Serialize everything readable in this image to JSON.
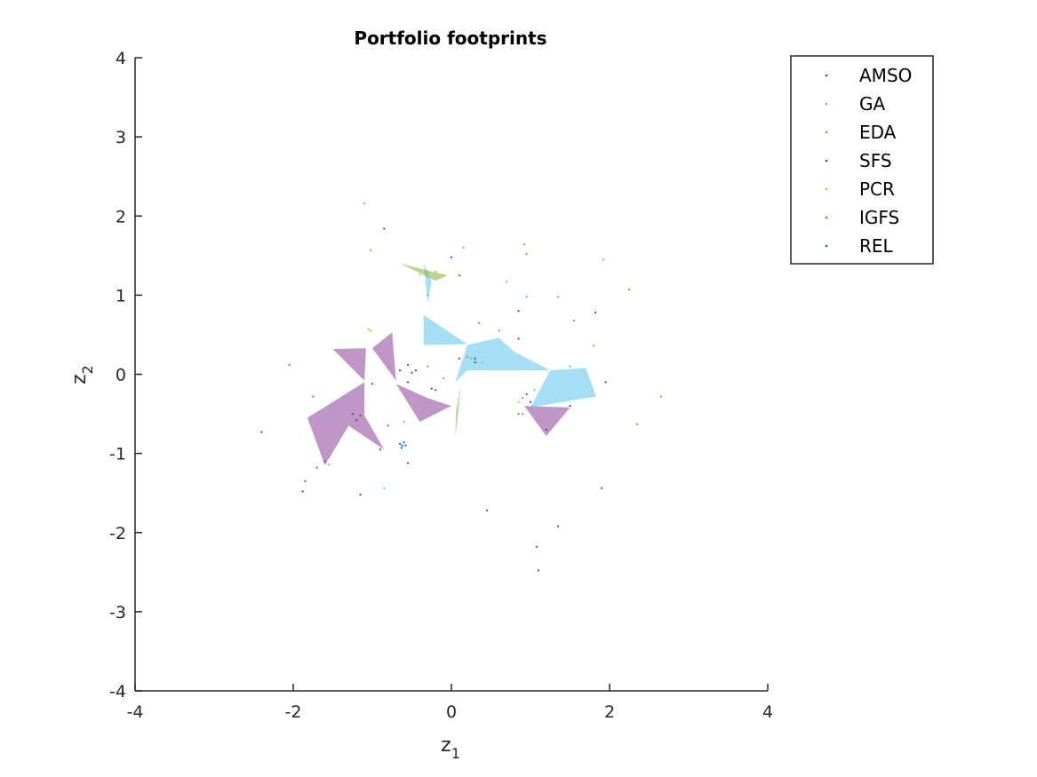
{
  "chart_data": {
    "type": "scatter",
    "title": "Portfolio footprints",
    "xlabel_main": "z",
    "xlabel_sub": "1",
    "ylabel_main": "z",
    "ylabel_sub": "2",
    "xlim": [
      -4,
      4
    ],
    "ylim": [
      -4,
      4
    ],
    "xticks": [
      "-4",
      "-2",
      "0",
      "2",
      "4"
    ],
    "yticks": [
      "-4",
      "-3",
      "-2",
      "-1",
      "0",
      "1",
      "2",
      "3",
      "4"
    ],
    "grid": false,
    "legend_position": "top-right",
    "series": [
      {
        "name": "AMSO",
        "color": "#7E2F8E",
        "points": [
          [
            -0.85,
            1.84
          ],
          [
            0.0,
            1.48
          ],
          [
            -0.55,
            0.12
          ],
          [
            -0.45,
            0.05
          ],
          [
            -0.2,
            -0.2
          ],
          [
            -0.25,
            -0.18
          ],
          [
            -1.2,
            -0.58
          ],
          [
            -1.15,
            -0.52
          ],
          [
            -1.25,
            -0.5
          ],
          [
            -0.9,
            -0.95
          ],
          [
            -1.6,
            -1.1
          ],
          [
            -0.55,
            -1.12
          ],
          [
            0.45,
            -1.72
          ],
          [
            1.35,
            -1.92
          ],
          [
            1.08,
            -2.18
          ],
          [
            1.1,
            -2.48
          ],
          [
            1.9,
            -1.44
          ],
          [
            -1.15,
            -1.52
          ],
          [
            -1.88,
            -1.48
          ],
          [
            -2.4,
            -0.73
          ],
          [
            1.2,
            -0.7
          ],
          [
            1.0,
            -0.35
          ],
          [
            0.85,
            0.8
          ],
          [
            1.82,
            0.78
          ],
          [
            1.95,
            -0.1
          ]
        ]
      },
      {
        "name": "GA",
        "color": "#4DBEEE",
        "points": [
          [
            -1.1,
            2.16
          ],
          [
            0.15,
            1.6
          ],
          [
            0.7,
            1.17
          ],
          [
            0.95,
            0.98
          ],
          [
            1.35,
            0.98
          ],
          [
            1.92,
            1.45
          ],
          [
            -0.3,
            1.0
          ],
          [
            0.25,
            0.2
          ],
          [
            0.4,
            0.15
          ],
          [
            1.05,
            -0.2
          ],
          [
            1.5,
            0.1
          ],
          [
            -0.85,
            -1.44
          ],
          [
            -1.55,
            -1.14
          ],
          [
            -0.6,
            -0.6
          ],
          [
            -0.1,
            -0.05
          ]
        ]
      },
      {
        "name": "EDA",
        "color": "#77AC30",
        "points": [
          [
            -1.02,
            1.57
          ],
          [
            0.92,
            1.64
          ],
          [
            0.95,
            1.52
          ],
          [
            0.6,
            0.55
          ],
          [
            2.25,
            1.07
          ],
          [
            1.55,
            0.68
          ],
          [
            1.8,
            0.36
          ],
          [
            2.65,
            -0.28
          ],
          [
            2.35,
            -0.63
          ],
          [
            0.9,
            -0.3
          ],
          [
            0.9,
            -0.5
          ],
          [
            0.2,
            0.22
          ],
          [
            0.35,
            0.65
          ],
          [
            -0.3,
            0.1
          ]
        ]
      },
      {
        "name": "SFS",
        "color": "#7E2F8E",
        "points": [
          [
            -0.65,
            0.05
          ],
          [
            -0.5,
            0.02
          ],
          [
            0.1,
            0.2
          ],
          [
            -0.55,
            -0.1
          ],
          [
            0.3,
            0.2
          ],
          [
            0.95,
            -0.25
          ],
          [
            1.5,
            -0.4
          ],
          [
            0.85,
            0.45
          ]
        ]
      },
      {
        "name": "PCR",
        "color": "#EDB120",
        "points": [
          [
            -0.2,
            1.3
          ],
          [
            -1.05,
            0.57
          ],
          [
            -1.02,
            0.55
          ],
          [
            -0.1,
            1.25
          ],
          [
            -0.4,
            1.26
          ],
          [
            0.85,
            -0.35
          ]
        ]
      },
      {
        "name": "IGFS",
        "color": "#D95319",
        "points": [
          [
            -2.05,
            0.12
          ],
          [
            -1.75,
            -0.28
          ],
          [
            -1.7,
            -1.18
          ],
          [
            -0.8,
            -0.65
          ],
          [
            0.1,
            1.25
          ],
          [
            0.85,
            -0.5
          ]
        ]
      },
      {
        "name": "REL",
        "color": "#0072BD",
        "points": [
          [
            -1.85,
            -1.35
          ],
          [
            -0.65,
            -0.88
          ],
          [
            -0.62,
            -0.9
          ],
          [
            -0.6,
            -0.86
          ],
          [
            -0.58,
            -0.9
          ],
          [
            -0.63,
            -0.93
          ],
          [
            -1.0,
            -0.12
          ],
          [
            0.3,
            0.15
          ]
        ]
      }
    ],
    "footprints": [
      {
        "color": "#7E2F8E",
        "points": [
          [
            -1.5,
            0.32
          ],
          [
            -1.08,
            0.33
          ],
          [
            -1.1,
            -0.08
          ]
        ]
      },
      {
        "color": "#7E2F8E",
        "points": [
          [
            -1.0,
            0.33
          ],
          [
            -0.75,
            0.53
          ],
          [
            -0.7,
            -0.08
          ]
        ]
      },
      {
        "color": "#7E2F8E",
        "points": [
          [
            -0.7,
            -0.12
          ],
          [
            -0.4,
            -0.6
          ],
          [
            0.0,
            -0.4
          ],
          [
            -0.3,
            -0.3
          ]
        ]
      },
      {
        "color": "#7E2F8E",
        "points": [
          [
            -1.82,
            -0.55
          ],
          [
            -1.1,
            -0.1
          ],
          [
            -1.1,
            -0.52
          ],
          [
            -0.85,
            -0.95
          ],
          [
            -1.3,
            -0.65
          ],
          [
            -1.6,
            -1.15
          ]
        ]
      },
      {
        "color": "#7E2F8E",
        "points": [
          [
            0.92,
            -0.4
          ],
          [
            1.5,
            -0.42
          ],
          [
            1.2,
            -0.78
          ]
        ]
      },
      {
        "color": "#4DBEEE",
        "points": [
          [
            -0.35,
            1.4
          ],
          [
            -0.25,
            1.18
          ],
          [
            -0.3,
            0.9
          ]
        ]
      },
      {
        "color": "#4DBEEE",
        "points": [
          [
            -0.35,
            0.75
          ],
          [
            0.2,
            0.38
          ],
          [
            -0.35,
            0.37
          ]
        ]
      },
      {
        "color": "#4DBEEE",
        "points": [
          [
            0.2,
            0.37
          ],
          [
            0.6,
            0.46
          ],
          [
            0.8,
            0.28
          ],
          [
            1.25,
            0.05
          ],
          [
            0.2,
            0.05
          ],
          [
            0.05,
            -0.1
          ]
        ]
      },
      {
        "color": "#4DBEEE",
        "points": [
          [
            1.25,
            0.05
          ],
          [
            1.7,
            0.08
          ],
          [
            1.83,
            -0.28
          ],
          [
            1.0,
            -0.42
          ]
        ]
      },
      {
        "color": "#77AC30",
        "points": [
          [
            -0.65,
            1.4
          ],
          [
            -0.05,
            1.25
          ],
          [
            -0.2,
            1.18
          ]
        ]
      },
      {
        "color": "#77AC30",
        "points": [
          [
            0.12,
            -0.15
          ],
          [
            0.05,
            -0.8
          ],
          [
            0.06,
            -0.45
          ]
        ]
      }
    ]
  }
}
